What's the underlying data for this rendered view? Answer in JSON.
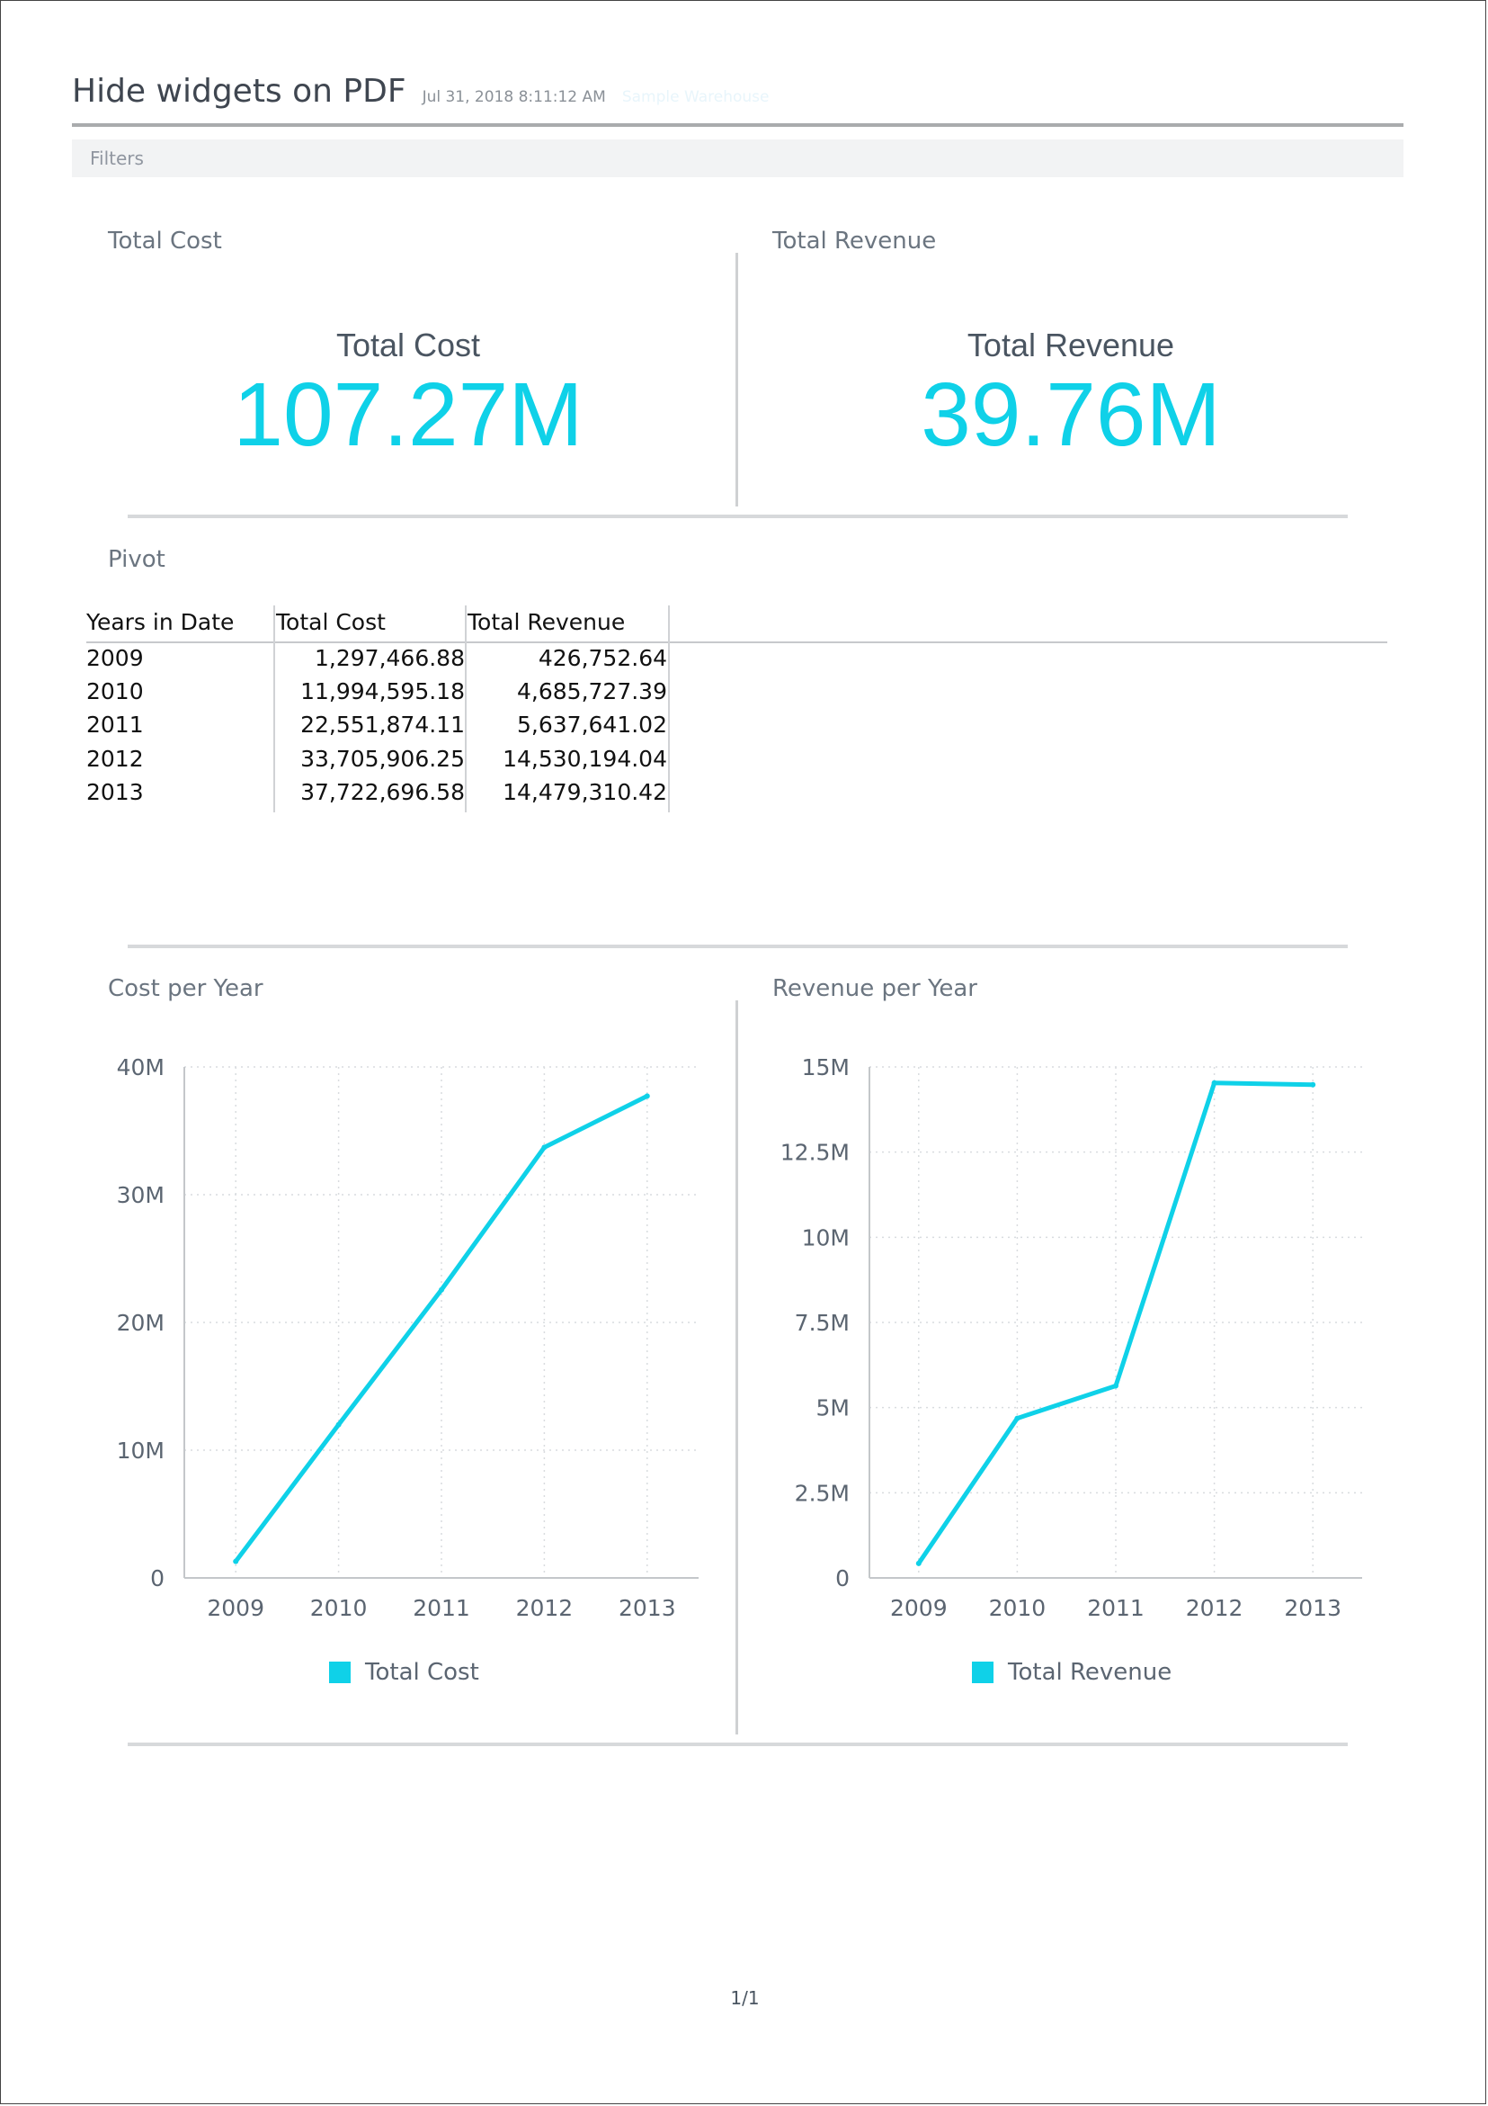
{
  "header": {
    "title": "Hide widgets on PDF",
    "timestamp": "Jul 31, 2018 8:11:12 AM",
    "subtitle": "Sample Warehouse"
  },
  "filters": {
    "label": "Filters"
  },
  "kpis": {
    "cost": {
      "widget_title": "Total Cost",
      "label": "Total Cost",
      "value": "107.27M"
    },
    "revenue": {
      "widget_title": "Total Revenue",
      "label": "Total Revenue",
      "value": "39.76M"
    }
  },
  "pivot": {
    "widget_title": "Pivot",
    "columns": [
      "Years in Date",
      "Total Cost",
      "Total Revenue"
    ],
    "rows": [
      [
        "2009",
        "1,297,466.88",
        "426,752.64"
      ],
      [
        "2010",
        "11,994,595.18",
        "4,685,727.39"
      ],
      [
        "2011",
        "22,551,874.11",
        "5,637,641.02"
      ],
      [
        "2012",
        "33,705,906.25",
        "14,530,194.04"
      ],
      [
        "2013",
        "37,722,696.58",
        "14,479,310.42"
      ]
    ]
  },
  "colors": {
    "accent": "#0fd1e8",
    "grid": "#d9dcdf",
    "axis": "#c4c7ca"
  },
  "chart_data": [
    {
      "type": "line",
      "title": "Cost per Year",
      "categories": [
        "2009",
        "2010",
        "2011",
        "2012",
        "2013"
      ],
      "series": [
        {
          "name": "Total Cost",
          "values": [
            1297466.88,
            11994595.18,
            22551874.11,
            33705906.25,
            37722696.58
          ]
        }
      ],
      "ylim": [
        0,
        40000000
      ],
      "yticks": [
        0,
        10000000,
        20000000,
        30000000,
        40000000
      ],
      "ytick_labels": [
        "0",
        "10M",
        "20M",
        "30M",
        "40M"
      ],
      "grid": true,
      "legend": "bottom"
    },
    {
      "type": "line",
      "title": "Revenue per Year",
      "categories": [
        "2009",
        "2010",
        "2011",
        "2012",
        "2013"
      ],
      "series": [
        {
          "name": "Total Revenue",
          "values": [
            426752.64,
            4685727.39,
            5637641.02,
            14530194.04,
            14479310.42
          ]
        }
      ],
      "ylim": [
        0,
        15000000
      ],
      "yticks": [
        0,
        2500000,
        5000000,
        7500000,
        10000000,
        12500000,
        15000000
      ],
      "ytick_labels": [
        "0",
        "2.5M",
        "5M",
        "7.5M",
        "10M",
        "12.5M",
        "15M"
      ],
      "grid": true,
      "legend": "bottom"
    }
  ],
  "footer": {
    "page_number": "1/1"
  }
}
